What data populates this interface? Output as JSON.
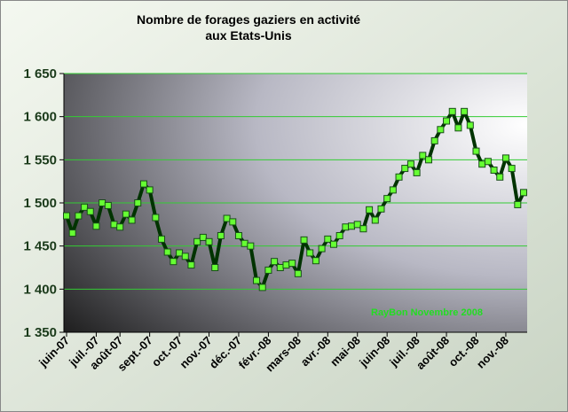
{
  "chart_data": {
    "type": "line",
    "title": [
      "Nombre de forages gaziers en activité",
      "aux Etats-Unis"
    ],
    "annotation": "RayBon Novembre 2008",
    "categories": [
      "juin-07",
      null,
      null,
      null,
      null,
      "juil.-07",
      null,
      null,
      null,
      "août-07",
      null,
      null,
      null,
      null,
      "sept.-07",
      null,
      null,
      null,
      null,
      "oct.-07",
      null,
      null,
      null,
      null,
      "nov.-07",
      null,
      null,
      null,
      null,
      "déc.-07",
      null,
      null,
      null,
      null,
      "févr.-08",
      null,
      null,
      null,
      null,
      "mars-08",
      null,
      null,
      null,
      null,
      "avr.-08",
      null,
      null,
      null,
      null,
      "mai-08",
      null,
      null,
      null,
      null,
      "juin-08",
      null,
      null,
      null,
      null,
      "juil.-08",
      null,
      null,
      null,
      null,
      "août-08",
      null,
      null,
      null,
      null,
      "oct.-08",
      null,
      null,
      null,
      null,
      "nov.-08",
      null,
      null,
      null
    ],
    "values": [
      1485,
      1465,
      1485,
      1495,
      1490,
      1473,
      1500,
      1497,
      1475,
      1472,
      1487,
      1480,
      1500,
      1522,
      1515,
      1483,
      1458,
      1443,
      1432,
      1442,
      1438,
      1428,
      1455,
      1460,
      1455,
      1425,
      1462,
      1482,
      1478,
      1462,
      1453,
      1450,
      1410,
      1402,
      1422,
      1432,
      1425,
      1428,
      1430,
      1418,
      1457,
      1442,
      1433,
      1447,
      1458,
      1452,
      1462,
      1472,
      1473,
      1475,
      1470,
      1492,
      1480,
      1493,
      1505,
      1515,
      1530,
      1540,
      1545,
      1535,
      1555,
      1550,
      1572,
      1585,
      1595,
      1606,
      1587,
      1606,
      1590,
      1560,
      1545,
      1548,
      1538,
      1530,
      1552,
      1540,
      1498,
      1512
    ],
    "color": "#003300",
    "marker_color": "#66ff33",
    "ylim": [
      1350,
      1650
    ],
    "yticks": [
      {
        "value": 1350,
        "label": "1 350"
      },
      {
        "value": 1400,
        "label": "1 400"
      },
      {
        "value": 1450,
        "label": "1 450"
      },
      {
        "value": 1500,
        "label": "1 500"
      },
      {
        "value": 1550,
        "label": "1 550"
      },
      {
        "value": 1600,
        "label": "1 600"
      },
      {
        "value": 1650,
        "label": "1 650"
      }
    ],
    "grid": true
  }
}
